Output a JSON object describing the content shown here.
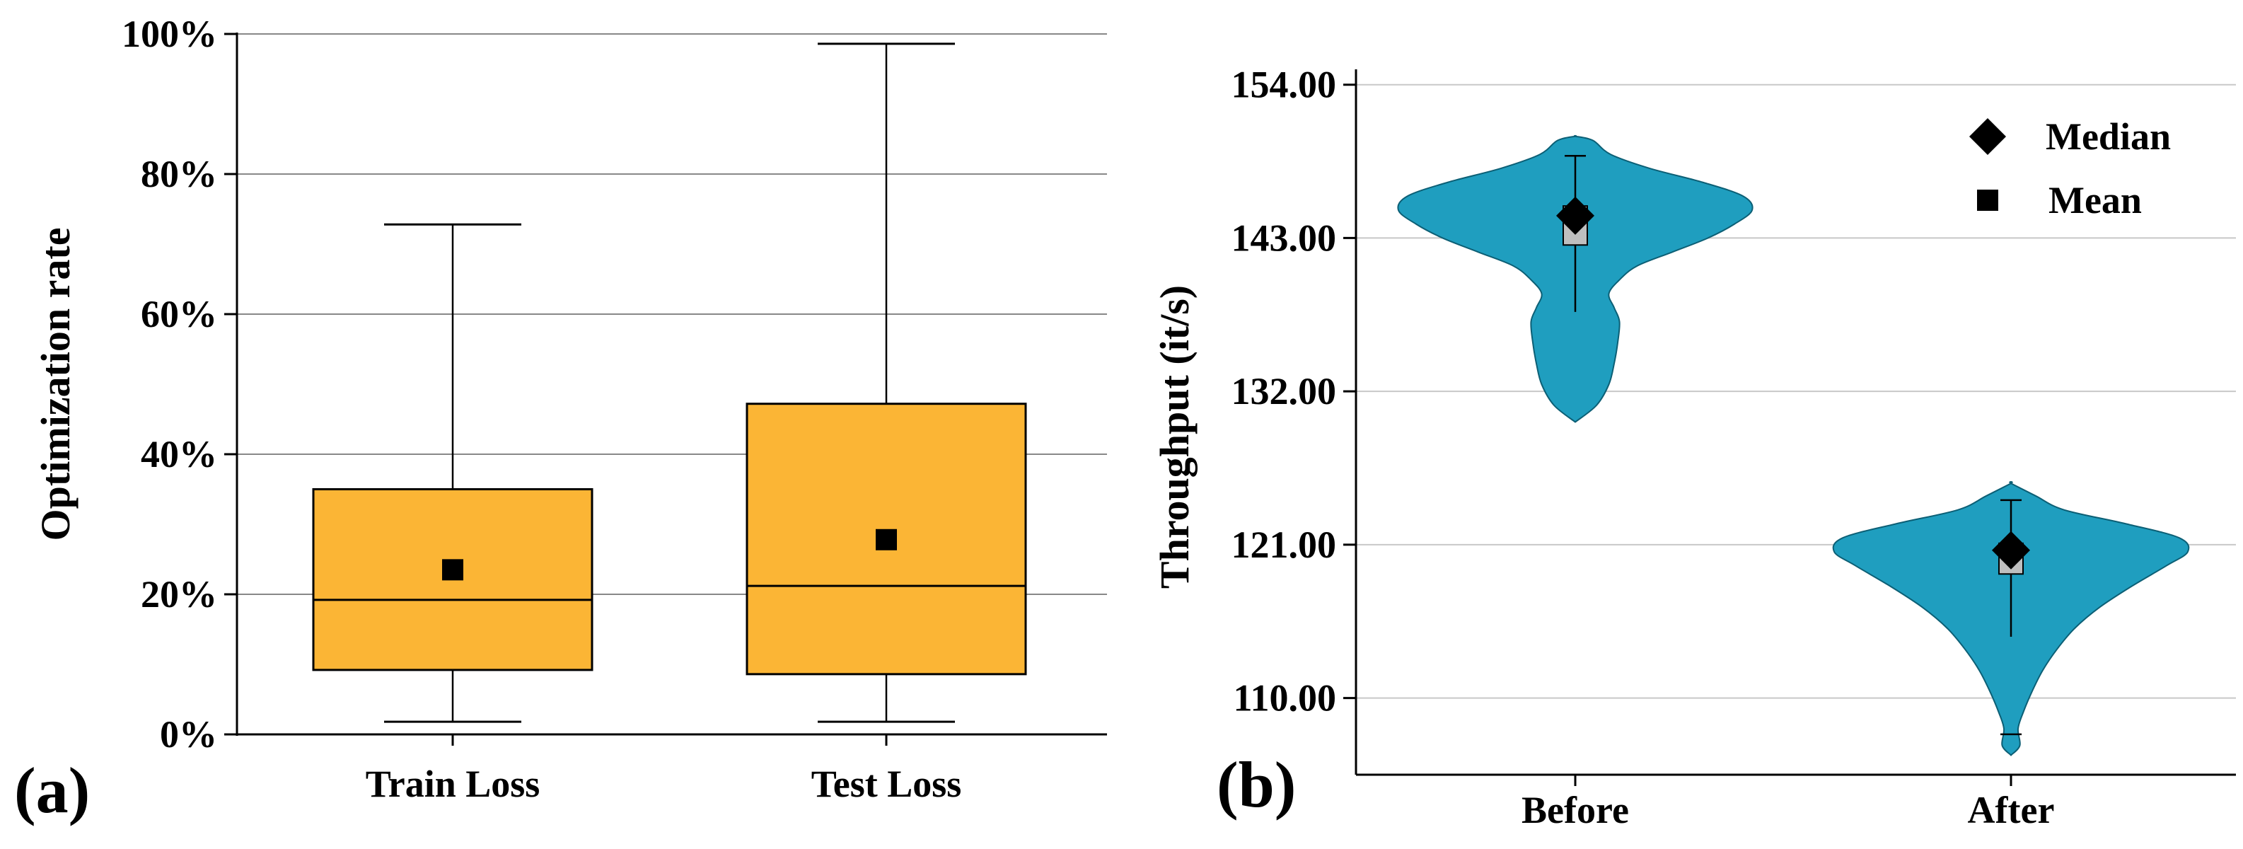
{
  "colors": {
    "box_fill": "#fbb535",
    "violin_fill": "#1f9ebf",
    "grid": "#888888",
    "mean_marker": "#000000",
    "median_marker": "#000000",
    "inner_box": "#bfbfbf"
  },
  "panel_labels": {
    "a": "(a)",
    "b": "(b)"
  },
  "chart_data": [
    {
      "type": "box",
      "panel": "(a)",
      "ylabel": "Optimization rate",
      "xlabel": "",
      "ylim": [
        0,
        100
      ],
      "y_ticks": [
        0,
        20,
        40,
        60,
        80,
        100
      ],
      "y_tick_labels": [
        "0%",
        "20%",
        "40%",
        "60%",
        "80%",
        "100%"
      ],
      "grid": true,
      "categories": [
        "Train Loss",
        "Test Loss"
      ],
      "boxes": [
        {
          "name": "Train Loss",
          "whisker_low": 1.8,
          "q1": 9.2,
          "median": 19.2,
          "q3": 35.0,
          "whisker_high": 72.8,
          "mean": 23.5
        },
        {
          "name": "Test Loss",
          "whisker_low": 1.8,
          "q1": 8.6,
          "median": 21.2,
          "q3": 47.2,
          "whisker_high": 98.6,
          "mean": 27.8
        }
      ]
    },
    {
      "type": "violin",
      "panel": "(b)",
      "ylabel": "Throughput (it/s)",
      "xlabel": "",
      "ylim": [
        104.5,
        155
      ],
      "y_ticks": [
        110,
        121,
        132,
        143,
        154
      ],
      "y_tick_labels": [
        "110.00",
        "121.00",
        "132.00",
        "143.00",
        "154.00"
      ],
      "grid": true,
      "categories": [
        "Before",
        "After"
      ],
      "legend": {
        "position": "top-right",
        "entries": [
          "Median",
          "Mean"
        ]
      },
      "violins": [
        {
          "name": "Before",
          "median": 144.6,
          "mean": 143.6,
          "q1": 142.5,
          "q3": 145.3,
          "whisker_low": 137.7,
          "whisker_high": 148.9,
          "min": 129.8,
          "max": 150.3,
          "density": [
            [
              129.8,
              0
            ],
            [
              131,
              0.12
            ],
            [
              132.5,
              0.19
            ],
            [
              134,
              0.22
            ],
            [
              135.5,
              0.24
            ],
            [
              137,
              0.25
            ],
            [
              138,
              0.22
            ],
            [
              139,
              0.19
            ],
            [
              140,
              0.25
            ],
            [
              141,
              0.35
            ],
            [
              142,
              0.55
            ],
            [
              143,
              0.75
            ],
            [
              144,
              0.9
            ],
            [
              145,
              1.0
            ],
            [
              146,
              0.95
            ],
            [
              147,
              0.72
            ],
            [
              148,
              0.42
            ],
            [
              149,
              0.2
            ],
            [
              150,
              0.1
            ],
            [
              150.3,
              0
            ]
          ]
        },
        {
          "name": "After",
          "median": 120.6,
          "mean": 119.7,
          "q1": 118.9,
          "q3": 121.1,
          "whisker_low": 114.4,
          "whisker_high": 124.2,
          "min": 105.9,
          "max": 125.4,
          "density": [
            [
              105.9,
              0
            ],
            [
              106.6,
              0.05
            ],
            [
              107.8,
              0.04
            ],
            [
              109,
              0.07
            ],
            [
              110.5,
              0.12
            ],
            [
              112,
              0.18
            ],
            [
              113.5,
              0.26
            ],
            [
              115,
              0.36
            ],
            [
              116.5,
              0.5
            ],
            [
              118,
              0.68
            ],
            [
              119.5,
              0.88
            ],
            [
              120.5,
              1.0
            ],
            [
              121.5,
              0.95
            ],
            [
              122.5,
              0.65
            ],
            [
              123.5,
              0.3
            ],
            [
              124.5,
              0.14
            ],
            [
              125.4,
              0
            ]
          ]
        }
      ]
    }
  ]
}
